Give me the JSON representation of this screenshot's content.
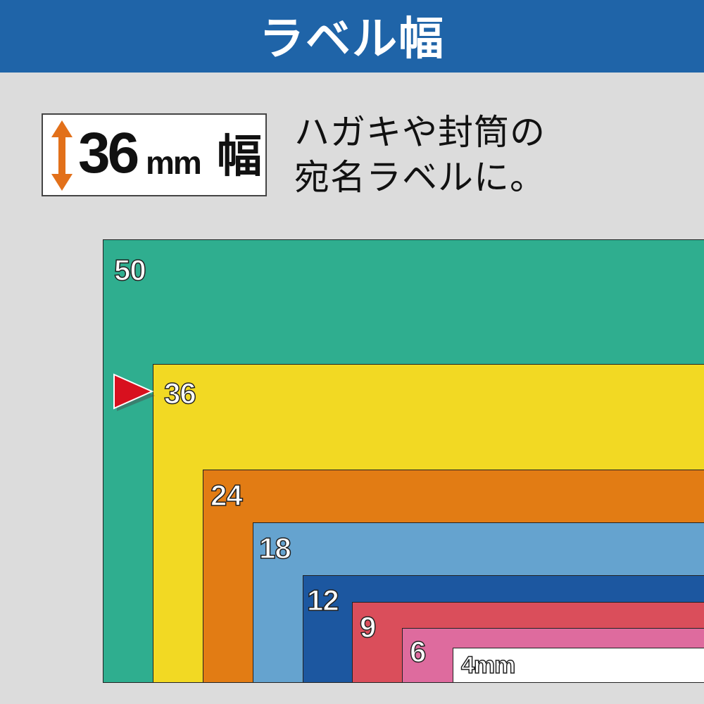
{
  "header": {
    "title": "ラベル幅"
  },
  "width_badge": {
    "icon": "double-arrow-vertical-icon",
    "value": "36",
    "unit": "mm",
    "kanji": "幅",
    "arrow_color": "#e2701a"
  },
  "description": {
    "line1": "ハガキや封筒の",
    "line2": "宛名ラベルに。"
  },
  "tapes": [
    {
      "label": "50",
      "color": "#2fae8f"
    },
    {
      "label": "36",
      "color": "#f2d923"
    },
    {
      "label": "24",
      "color": "#e27c14"
    },
    {
      "label": "18",
      "color": "#65a3cf"
    },
    {
      "label": "12",
      "color": "#1c57a0"
    },
    {
      "label": "9",
      "color": "#da4e5b"
    },
    {
      "label": "6",
      "color": "#de6b9e"
    },
    {
      "label": "4mm",
      "color": "#ffffff"
    }
  ],
  "selected_marker": {
    "icon": "red-triangle-pointer-icon",
    "color": "#d8101e",
    "points_to": "36"
  }
}
